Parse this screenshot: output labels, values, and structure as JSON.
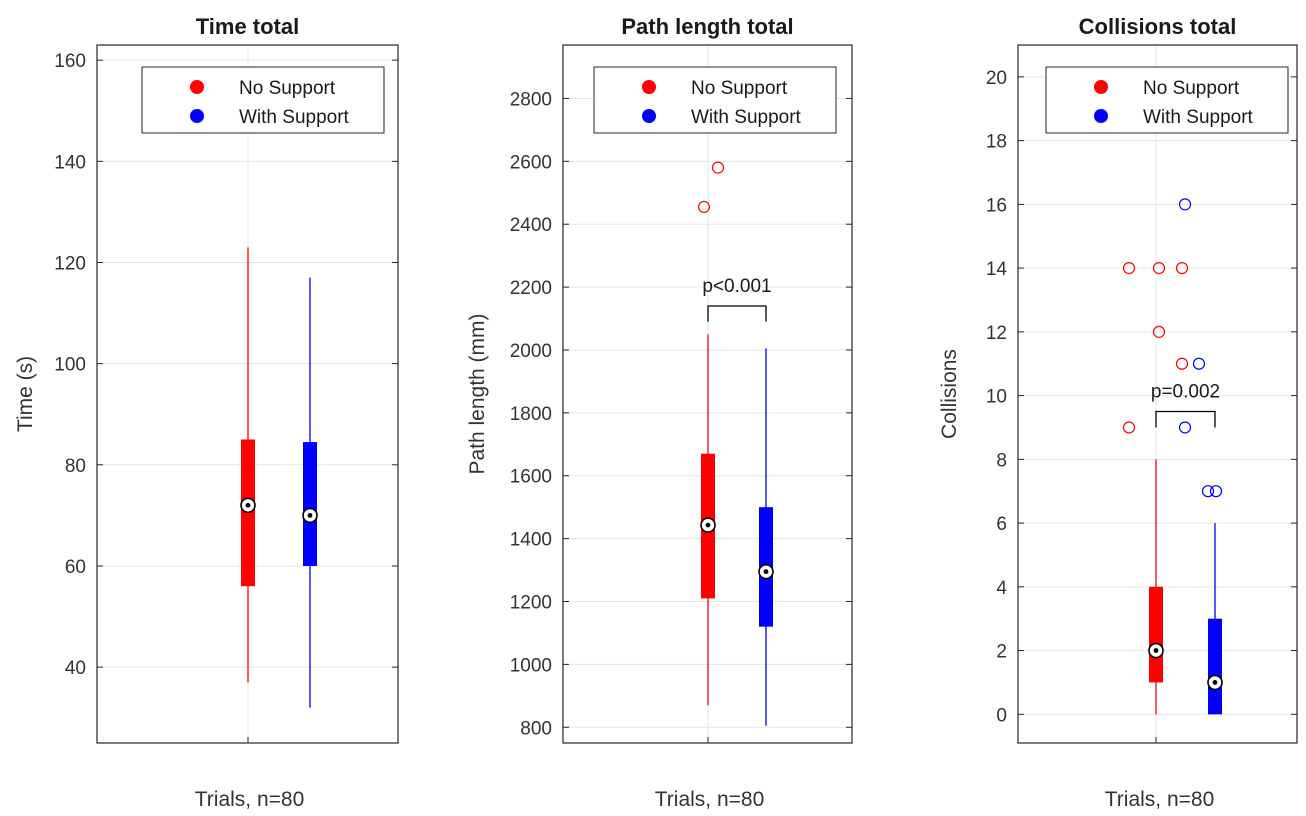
{
  "chart_data": [
    {
      "type": "boxplot",
      "title": "Time total",
      "xlabel": "Trials, n=80",
      "ylabel": "Time (s)",
      "ylim": [
        25,
        163
      ],
      "yticks": [
        40,
        60,
        80,
        100,
        120,
        140,
        160
      ],
      "grid": true,
      "legend_position": "top-right",
      "series": [
        {
          "name": "No Support",
          "color": "#ff0000",
          "min": 37,
          "q1": 56,
          "median": 72,
          "q3": 85,
          "max": 123,
          "outliers": []
        },
        {
          "name": "With Support",
          "color": "#0000ff",
          "min": 32,
          "q1": 60,
          "median": 70,
          "q3": 84.5,
          "max": 117,
          "outliers": []
        }
      ],
      "annotation": null
    },
    {
      "type": "boxplot",
      "title": "Path length total",
      "xlabel": "Trials, n=80",
      "ylabel": "Path length (mm)",
      "ylim": [
        750,
        2970
      ],
      "yticks": [
        800,
        1000,
        1200,
        1400,
        1600,
        1800,
        2000,
        2200,
        2400,
        2600,
        2800
      ],
      "grid": true,
      "legend_position": "top-right",
      "series": [
        {
          "name": "No Support",
          "color": "#ff0000",
          "min": 870,
          "q1": 1210,
          "median": 1443,
          "q3": 1670,
          "max": 2050,
          "outliers": [
            [
              -0.1,
              2455
            ],
            [
              0.3,
              2580
            ]
          ]
        },
        {
          "name": "With Support",
          "color": "#0000ff",
          "min": 805,
          "q1": 1120,
          "median": 1295,
          "q3": 1500,
          "max": 2005,
          "outliers": []
        }
      ],
      "annotation": {
        "text": "p<0.001",
        "y": 2140,
        "drop_to": 2090
      }
    },
    {
      "type": "boxplot",
      "title": "Collisions total",
      "xlabel": "Trials, n=80",
      "ylabel": "Collisions",
      "ylim": [
        -0.9,
        21
      ],
      "yticks": [
        0,
        2,
        4,
        6,
        8,
        10,
        12,
        14,
        16,
        18,
        20
      ],
      "grid": true,
      "legend_position": "top-right",
      "series": [
        {
          "name": "No Support",
          "color": "#ff0000",
          "min": 0,
          "q1": 1,
          "median": 2,
          "q3": 4,
          "max": 8,
          "outliers": [
            [
              -0.45,
              9
            ],
            [
              -0.45,
              14
            ],
            [
              0.05,
              14
            ],
            [
              0.05,
              12
            ],
            [
              0.45,
              14
            ],
            [
              0.45,
              11
            ]
          ]
        },
        {
          "name": "With Support",
          "color": "#0000ff",
          "min": 0,
          "q1": 0,
          "median": 1,
          "q3": 3,
          "max": 6,
          "outliers": [
            [
              -0.5,
              16
            ],
            [
              -0.5,
              9
            ],
            [
              -0.3,
              11
            ],
            [
              -0.1,
              7
            ],
            [
              0.1,
              7
            ]
          ]
        }
      ],
      "annotation": {
        "text": "p=0.002",
        "y": 9.5,
        "drop_to": 9.0
      }
    }
  ]
}
